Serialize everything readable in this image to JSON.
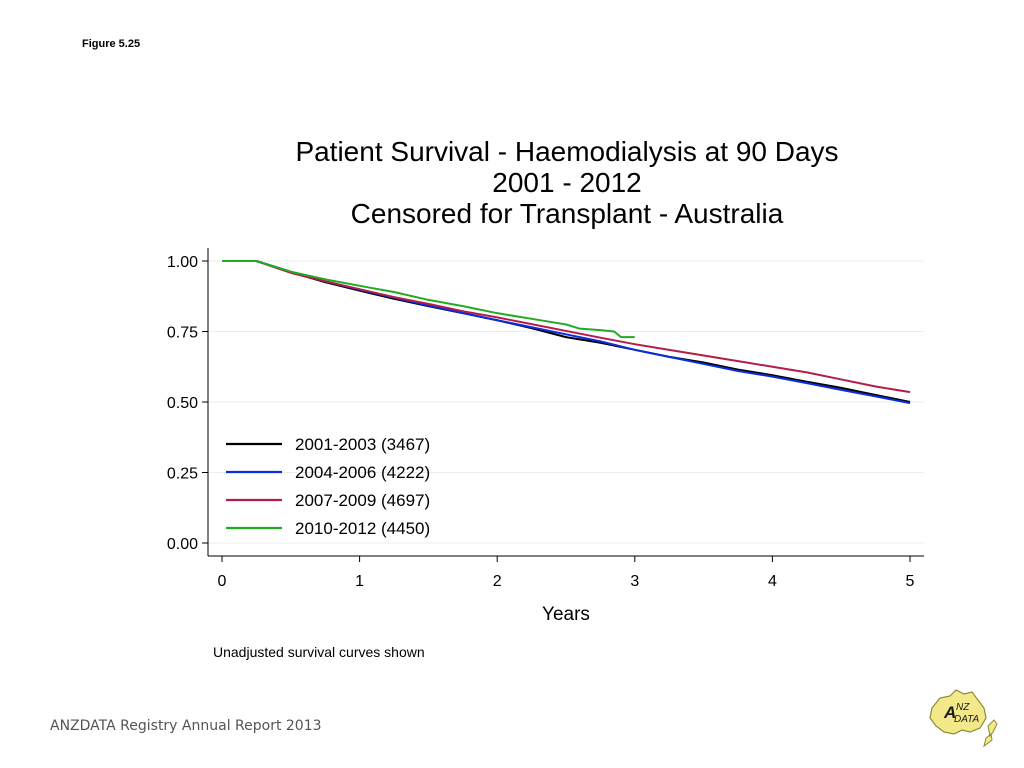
{
  "figure_label": "Figure 5.25",
  "note": "Unadjusted survival curves shown",
  "footer": "ANZDATA Registry Annual Report 2013",
  "logo": {
    "text": "ANZ DATA",
    "icon": "anzdata-map-logo"
  },
  "chart_data": {
    "type": "line",
    "title_lines": [
      "Patient Survival - Haemodialysis at 90 Days",
      "2001 - 2012",
      "Censored for Transplant - Australia"
    ],
    "xlabel": "Years",
    "ylabel": "",
    "xlim": [
      0,
      5
    ],
    "ylim": [
      0,
      1
    ],
    "xticks": [
      0,
      1,
      2,
      3,
      4,
      5
    ],
    "xtick_labels": [
      "0",
      "1",
      "2",
      "3",
      "4",
      "5"
    ],
    "yticks": [
      0,
      0.25,
      0.5,
      0.75,
      1.0
    ],
    "ytick_labels": [
      "0.00",
      "0.25",
      "0.50",
      "0.75",
      "1.00"
    ],
    "grid": "horizontal",
    "legend_position": "bottom-left",
    "series": [
      {
        "name": "2001-2003 (3467)",
        "color": "#000000",
        "x": [
          0,
          0.25,
          0.5,
          0.75,
          1.0,
          1.25,
          1.5,
          1.75,
          2.0,
          2.25,
          2.5,
          2.75,
          3.0,
          3.25,
          3.5,
          3.75,
          4.0,
          4.25,
          4.5,
          4.75,
          5.0
        ],
        "y": [
          1.0,
          1.0,
          0.96,
          0.925,
          0.895,
          0.866,
          0.84,
          0.815,
          0.79,
          0.762,
          0.73,
          0.71,
          0.685,
          0.66,
          0.64,
          0.615,
          0.595,
          0.572,
          0.55,
          0.525,
          0.5
        ]
      },
      {
        "name": "2004-2006 (4222)",
        "color": "#0a2de0",
        "x": [
          0,
          0.25,
          0.5,
          0.75,
          1.0,
          1.25,
          1.5,
          1.75,
          2.0,
          2.25,
          2.5,
          2.75,
          3.0,
          3.25,
          3.5,
          3.75,
          4.0,
          4.25,
          4.5,
          4.75,
          5.0
        ],
        "y": [
          1.0,
          1.0,
          0.962,
          0.928,
          0.898,
          0.87,
          0.842,
          0.816,
          0.79,
          0.765,
          0.74,
          0.715,
          0.685,
          0.66,
          0.635,
          0.61,
          0.59,
          0.567,
          0.543,
          0.52,
          0.496
        ]
      },
      {
        "name": "2007-2009 (4697)",
        "color": "#b21e4a",
        "x": [
          0,
          0.25,
          0.5,
          0.75,
          1.0,
          1.25,
          1.5,
          1.75,
          2.0,
          2.25,
          2.5,
          2.75,
          3.0,
          3.25,
          3.5,
          3.75,
          4.0,
          4.25,
          4.5,
          4.75,
          5.0
        ],
        "y": [
          1.0,
          1.0,
          0.958,
          0.928,
          0.9,
          0.872,
          0.848,
          0.822,
          0.8,
          0.776,
          0.752,
          0.728,
          0.705,
          0.685,
          0.665,
          0.645,
          0.625,
          0.605,
          0.58,
          0.555,
          0.535
        ]
      },
      {
        "name": "2010-2012 (4450)",
        "color": "#22aa22",
        "x": [
          0,
          0.25,
          0.5,
          0.75,
          1.0,
          1.25,
          1.5,
          1.75,
          2.0,
          2.25,
          2.5,
          2.6,
          2.75,
          2.85,
          2.9,
          3.0
        ],
        "y": [
          1.0,
          1.0,
          0.962,
          0.935,
          0.912,
          0.89,
          0.862,
          0.84,
          0.815,
          0.795,
          0.775,
          0.76,
          0.755,
          0.75,
          0.73,
          0.73
        ]
      }
    ]
  }
}
